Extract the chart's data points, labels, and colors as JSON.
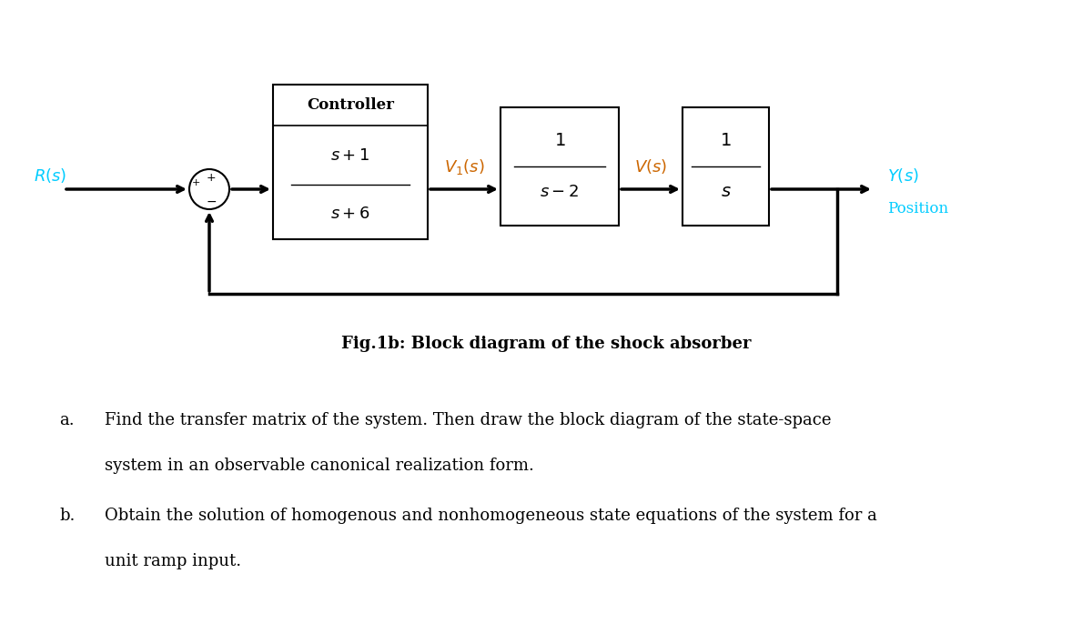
{
  "bg_color": "#ffffff",
  "fig_w": 12.0,
  "fig_h": 7.08,
  "dpi": 100,
  "diagram": {
    "R_label": "$R(s)$",
    "R_color": "#00ccff",
    "Y_label": "$Y(s)$",
    "Y_color": "#00ccff",
    "position_label": "Position",
    "position_color": "#00ccff",
    "controller_label": "Controller",
    "block1_num": "$s+1$",
    "block1_den": "$s+6$",
    "block2_num": "$1$",
    "block2_den": "$s-2$",
    "block3_num": "$1$",
    "block3_den": "$s$",
    "V1_label": "$V_1(s)$",
    "V1_color": "#cc6600",
    "V_label": "$V(s)$",
    "V_color": "#cc6600",
    "fig_caption": "Fig.1b: Block diagram of the shock absorber"
  },
  "questions": [
    {
      "label": "a.",
      "line1": "Find the transfer matrix of the system. Then draw the block diagram of the state-space",
      "line2": "system in an observable canonical realization form."
    },
    {
      "label": "b.",
      "line1": "Obtain the solution of homogenous and nonhomogeneous state equations of the system for a",
      "line2": "unit ramp input."
    }
  ]
}
